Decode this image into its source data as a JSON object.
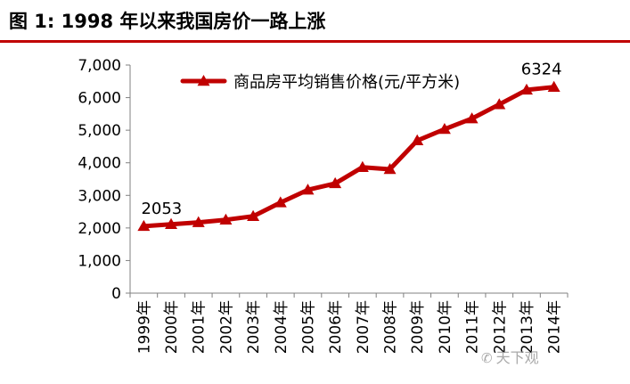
{
  "figure_title": "图 1:    1998 年以来我国房价一路上涨",
  "watermark": "天下观",
  "colors": {
    "series": "#c00000",
    "title_rule": "#c00000",
    "axis": "#808080",
    "text": "#000000"
  },
  "chart_data": {
    "type": "line",
    "title": "",
    "xlabel": "",
    "ylabel": "",
    "ylim": [
      0,
      7000
    ],
    "y_ticks": [
      0,
      1000,
      2000,
      3000,
      4000,
      5000,
      6000,
      7000
    ],
    "y_tick_labels": [
      "0",
      "1,000",
      "2,000",
      "3,000",
      "4,000",
      "5,000",
      "6,000",
      "7,000"
    ],
    "categories": [
      "1999年",
      "2000年",
      "2001年",
      "2002年",
      "2003年",
      "2004年",
      "2005年",
      "2006年",
      "2007年",
      "2008年",
      "2009年",
      "2010年",
      "2011年",
      "2012年",
      "2013年",
      "2014年"
    ],
    "grid": false,
    "legend_position": "top",
    "series": [
      {
        "name": "商品房平均销售价格(元/平方米)",
        "marker": "triangle",
        "values": [
          2053,
          2112,
          2170,
          2250,
          2359,
          2778,
          3168,
          3367,
          3864,
          3800,
          4681,
          5032,
          5357,
          5791,
          6237,
          6324
        ]
      }
    ],
    "annotations": [
      {
        "category": "1999年",
        "text": "2053"
      },
      {
        "category": "2014年",
        "text": "6324"
      }
    ]
  }
}
